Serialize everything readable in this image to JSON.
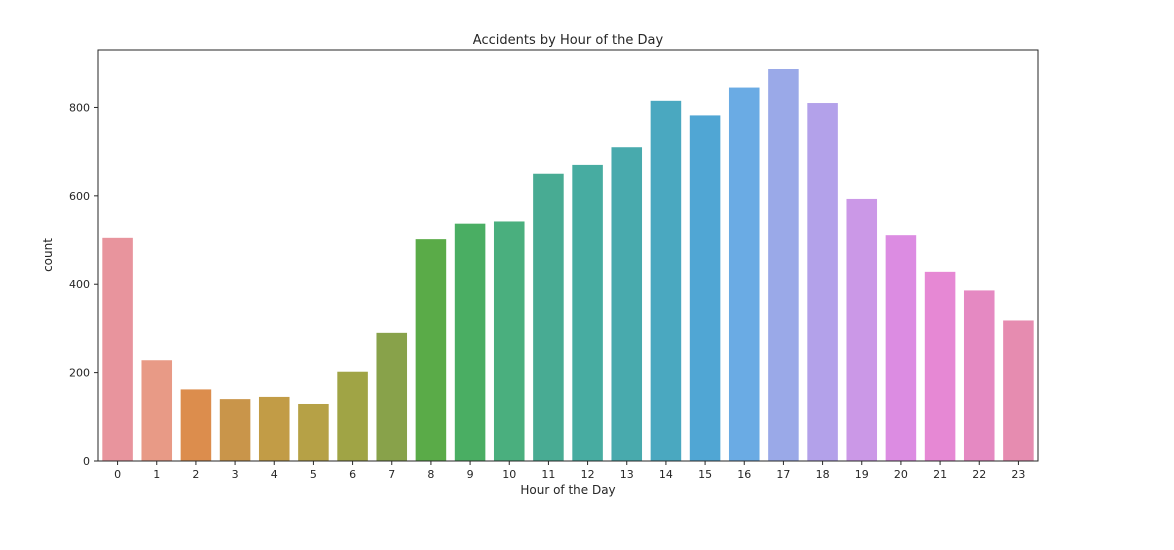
{
  "chart_data": {
    "type": "bar",
    "title": "Accidents by Hour of the Day",
    "xlabel": "Hour of the Day",
    "ylabel": "count",
    "categories": [
      "0",
      "1",
      "2",
      "3",
      "4",
      "5",
      "6",
      "7",
      "8",
      "9",
      "10",
      "11",
      "12",
      "13",
      "14",
      "15",
      "16",
      "17",
      "18",
      "19",
      "20",
      "21",
      "22",
      "23"
    ],
    "values": [
      505,
      228,
      162,
      140,
      145,
      129,
      202,
      290,
      502,
      537,
      542,
      650,
      670,
      710,
      815,
      782,
      845,
      887,
      810,
      593,
      511,
      428,
      386,
      318
    ],
    "colors": [
      "#e8949d",
      "#e89a86",
      "#dc8d4d",
      "#c9954a",
      "#c29c46",
      "#b6a146",
      "#a0a445",
      "#88a24a",
      "#5aab48",
      "#4aae63",
      "#4aaf7e",
      "#48ab93",
      "#47aca1",
      "#48aaad",
      "#4aa8c0",
      "#50a6d4",
      "#6aabe4",
      "#9aa9e8",
      "#b3a1ea",
      "#cb98e7",
      "#dc8ce2",
      "#e688d4",
      "#e589c2",
      "#e68cb0"
    ],
    "yticks": [
      0,
      200,
      400,
      600,
      800
    ],
    "ylim": [
      0,
      930
    ],
    "grid": false,
    "legend": "none"
  }
}
